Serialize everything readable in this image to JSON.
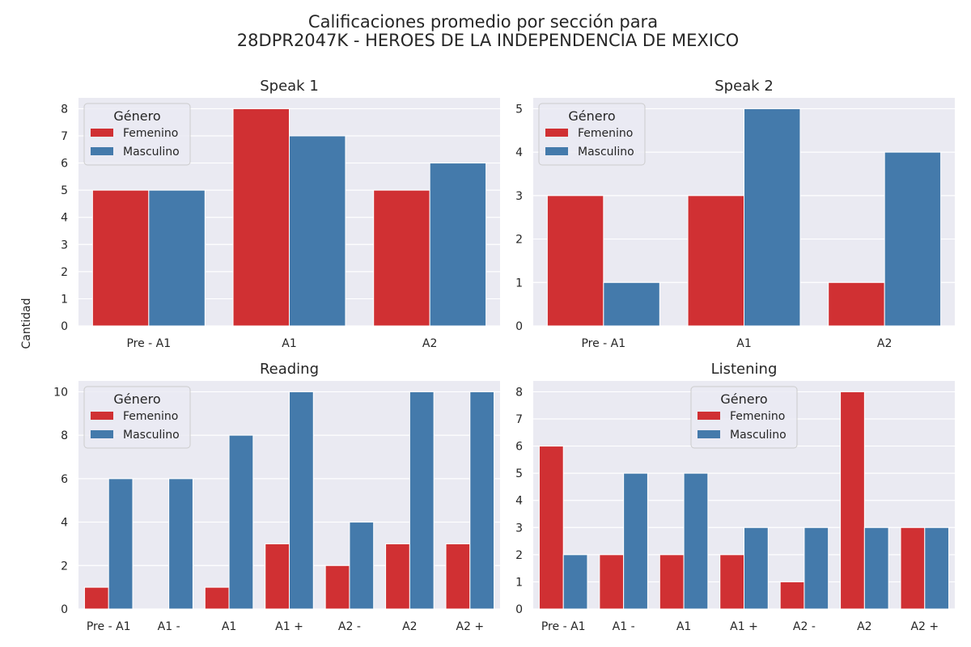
{
  "figure": {
    "title_line1": "Calificaciones promedio por sección para",
    "title_line2": "28DPR2047K - HEROES DE LA INDEPENDENCIA DE MEXICO",
    "ylabel": "Cantidad"
  },
  "colors": {
    "Femenino": "#d03033",
    "Masculino": "#447aab",
    "plot_bg": "#eaeaf2",
    "grid": "#ffffff"
  },
  "chart_data": [
    {
      "type": "bar",
      "title": "Speak 1",
      "categories": [
        "Pre - A1",
        "A1",
        "A2"
      ],
      "series": [
        {
          "name": "Femenino",
          "values": [
            5,
            8,
            5
          ]
        },
        {
          "name": "Masculino",
          "values": [
            5,
            7,
            6
          ]
        }
      ],
      "ylim": [
        0,
        8.4
      ],
      "yticks": [
        0,
        1,
        2,
        3,
        4,
        5,
        6,
        7,
        8
      ],
      "legend": {
        "title": "Género",
        "position": "upper-left"
      },
      "grid": true
    },
    {
      "type": "bar",
      "title": "Speak 2",
      "categories": [
        "Pre - A1",
        "A1",
        "A2"
      ],
      "series": [
        {
          "name": "Femenino",
          "values": [
            3,
            3,
            1
          ]
        },
        {
          "name": "Masculino",
          "values": [
            1,
            5,
            4
          ]
        }
      ],
      "ylim": [
        0,
        5.25
      ],
      "yticks": [
        0,
        1,
        2,
        3,
        4,
        5
      ],
      "legend": {
        "title": "Género",
        "position": "upper-left"
      },
      "grid": true
    },
    {
      "type": "bar",
      "title": "Reading",
      "categories": [
        "Pre - A1",
        "A1 -",
        "A1",
        "A1 +",
        "A2 -",
        "A2",
        "A2 +"
      ],
      "series": [
        {
          "name": "Femenino",
          "values": [
            1,
            0,
            1,
            3,
            2,
            3,
            3
          ]
        },
        {
          "name": "Masculino",
          "values": [
            6,
            6,
            8,
            10,
            4,
            10,
            10
          ]
        }
      ],
      "ylim": [
        0,
        10.5
      ],
      "yticks": [
        0,
        2,
        4,
        6,
        8,
        10
      ],
      "legend": {
        "title": "Género",
        "position": "upper-left"
      },
      "grid": true
    },
    {
      "type": "bar",
      "title": "Listening",
      "categories": [
        "Pre - A1",
        "A1 -",
        "A1",
        "A1 +",
        "A2 -",
        "A2",
        "A2 +"
      ],
      "series": [
        {
          "name": "Femenino",
          "values": [
            6,
            2,
            2,
            2,
            1,
            8,
            3
          ]
        },
        {
          "name": "Masculino",
          "values": [
            2,
            5,
            5,
            3,
            3,
            3,
            3
          ]
        }
      ],
      "ylim": [
        0,
        8.4
      ],
      "yticks": [
        0,
        1,
        2,
        3,
        4,
        5,
        6,
        7,
        8
      ],
      "legend": {
        "title": "Género",
        "position": "upper-center"
      },
      "grid": true
    }
  ]
}
